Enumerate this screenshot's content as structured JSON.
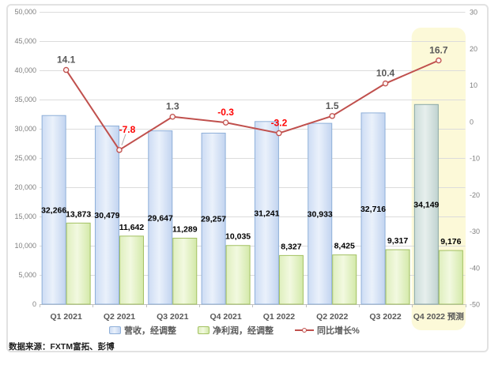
{
  "source_note": "数据来源：FXTM富拓、彭博",
  "chart_data": {
    "type": "combo-bar-line",
    "categories": [
      "Q1 2021",
      "Q2 2021",
      "Q3 2021",
      "Q4 2021",
      "Q1 2022",
      "Q2 2022",
      "Q3 2022",
      "Q4 2022 预测"
    ],
    "series": [
      {
        "name": "营收，经调整",
        "type": "bar",
        "axis": "left",
        "values": [
          32266,
          30479,
          29647,
          29257,
          31241,
          30933,
          32716,
          34149
        ]
      },
      {
        "name": "净利润，经调整",
        "type": "bar",
        "axis": "left",
        "values": [
          13873,
          11642,
          11289,
          10035,
          8327,
          8425,
          9317,
          9176
        ]
      },
      {
        "name": "同比增长%",
        "type": "line",
        "axis": "right",
        "values": [
          14.1,
          -7.8,
          1.3,
          -0.3,
          -3.2,
          1.5,
          10.4,
          16.7
        ]
      }
    ],
    "left_axis": {
      "min": 0,
      "max": 50000,
      "step": 5000
    },
    "right_axis": {
      "min": -50,
      "max": 30,
      "step": 10
    },
    "grid": true,
    "legend_position": "bottom",
    "highlight": {
      "category": "Q4 2022 预测",
      "index": 7,
      "color": "#fcf8d5"
    },
    "colors": {
      "revenue": {
        "border": "#8fb0d9",
        "gradient": [
          "#cddcf4",
          "#eaf1fb",
          "#c2d4f0"
        ]
      },
      "profit": {
        "border": "#a3c162",
        "gradient": [
          "#dfefbe",
          "#f2f9e0",
          "#d3e9a9"
        ]
      },
      "forecast": {
        "border": "#8aa8a6",
        "gradient": [
          "#ccdcd9",
          "#e7efed",
          "#c0d3d0"
        ]
      },
      "line": "#c0504d",
      "marker_fill": "#fdf3f2",
      "line_label_positive": "#595959",
      "line_label_negative": "#ff0000",
      "bar_label": "#000000",
      "axis_label": "#808080",
      "category_label": "#595959",
      "gridline": "#dcdcdc",
      "axis_line": "#bfbfbf",
      "leader_line": "#b0b0b0"
    }
  }
}
